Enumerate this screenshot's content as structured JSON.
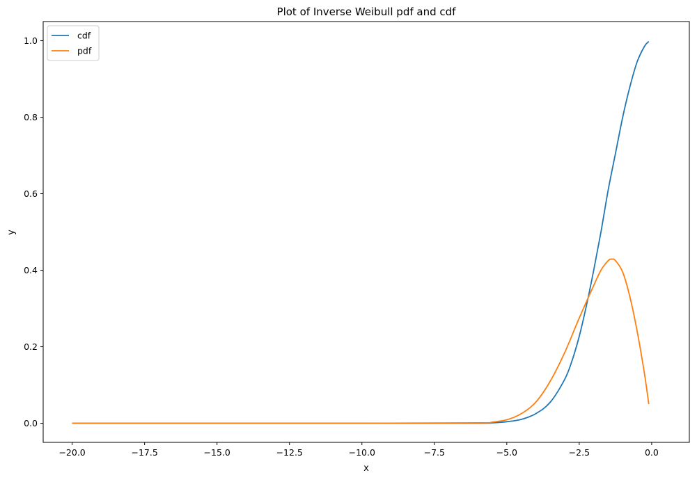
{
  "chart_data": {
    "type": "line",
    "title": "Plot of Inverse Weibull pdf and cdf",
    "xlabel": "x",
    "ylabel": "y",
    "xlim": [
      -21.0,
      1.3
    ],
    "ylim": [
      -0.05,
      1.05
    ],
    "x_ticks": [
      -20.0,
      -17.5,
      -15.0,
      -12.5,
      -10.0,
      -7.5,
      -5.0,
      -2.5,
      0.0
    ],
    "x_tick_labels": [
      "−20.0",
      "−17.5",
      "−15.0",
      "−12.5",
      "−10.0",
      "−7.5",
      "−5.0",
      "−2.5",
      "0.0"
    ],
    "y_ticks": [
      0.0,
      0.2,
      0.4,
      0.6,
      0.8,
      1.0
    ],
    "y_tick_labels": [
      "0.0",
      "0.2",
      "0.4",
      "0.6",
      "0.8",
      "1.0"
    ],
    "grid": false,
    "legend": {
      "position": "top-left"
    },
    "series": [
      {
        "name": "cdf",
        "color": "#1f77b4",
        "x": [
          -20.0,
          -10.0,
          -6.0,
          -5.5,
          -5.0,
          -4.5,
          -4.0,
          -3.5,
          -3.0,
          -2.75,
          -2.5,
          -2.25,
          -2.0,
          -1.75,
          -1.5,
          -1.25,
          -1.0,
          -0.75,
          -0.5,
          -0.25,
          -0.1
        ],
        "y": [
          0.0,
          0.0,
          0.0,
          0.001,
          0.004,
          0.01,
          0.025,
          0.055,
          0.115,
          0.163,
          0.227,
          0.308,
          0.4,
          0.5,
          0.61,
          0.705,
          0.8,
          0.88,
          0.945,
          0.985,
          0.998
        ]
      },
      {
        "name": "pdf",
        "color": "#ff7f0e",
        "x": [
          -20.0,
          -10.0,
          -6.0,
          -5.5,
          -5.0,
          -4.5,
          -4.0,
          -3.5,
          -3.0,
          -2.5,
          -2.0,
          -1.75,
          -1.5,
          -1.38,
          -1.25,
          -1.0,
          -0.75,
          -0.5,
          -0.25,
          -0.1
        ],
        "y": [
          0.0,
          0.0,
          0.001,
          0.003,
          0.009,
          0.025,
          0.055,
          0.11,
          0.185,
          0.275,
          0.36,
          0.4,
          0.425,
          0.429,
          0.425,
          0.395,
          0.33,
          0.24,
          0.13,
          0.05
        ]
      }
    ]
  }
}
